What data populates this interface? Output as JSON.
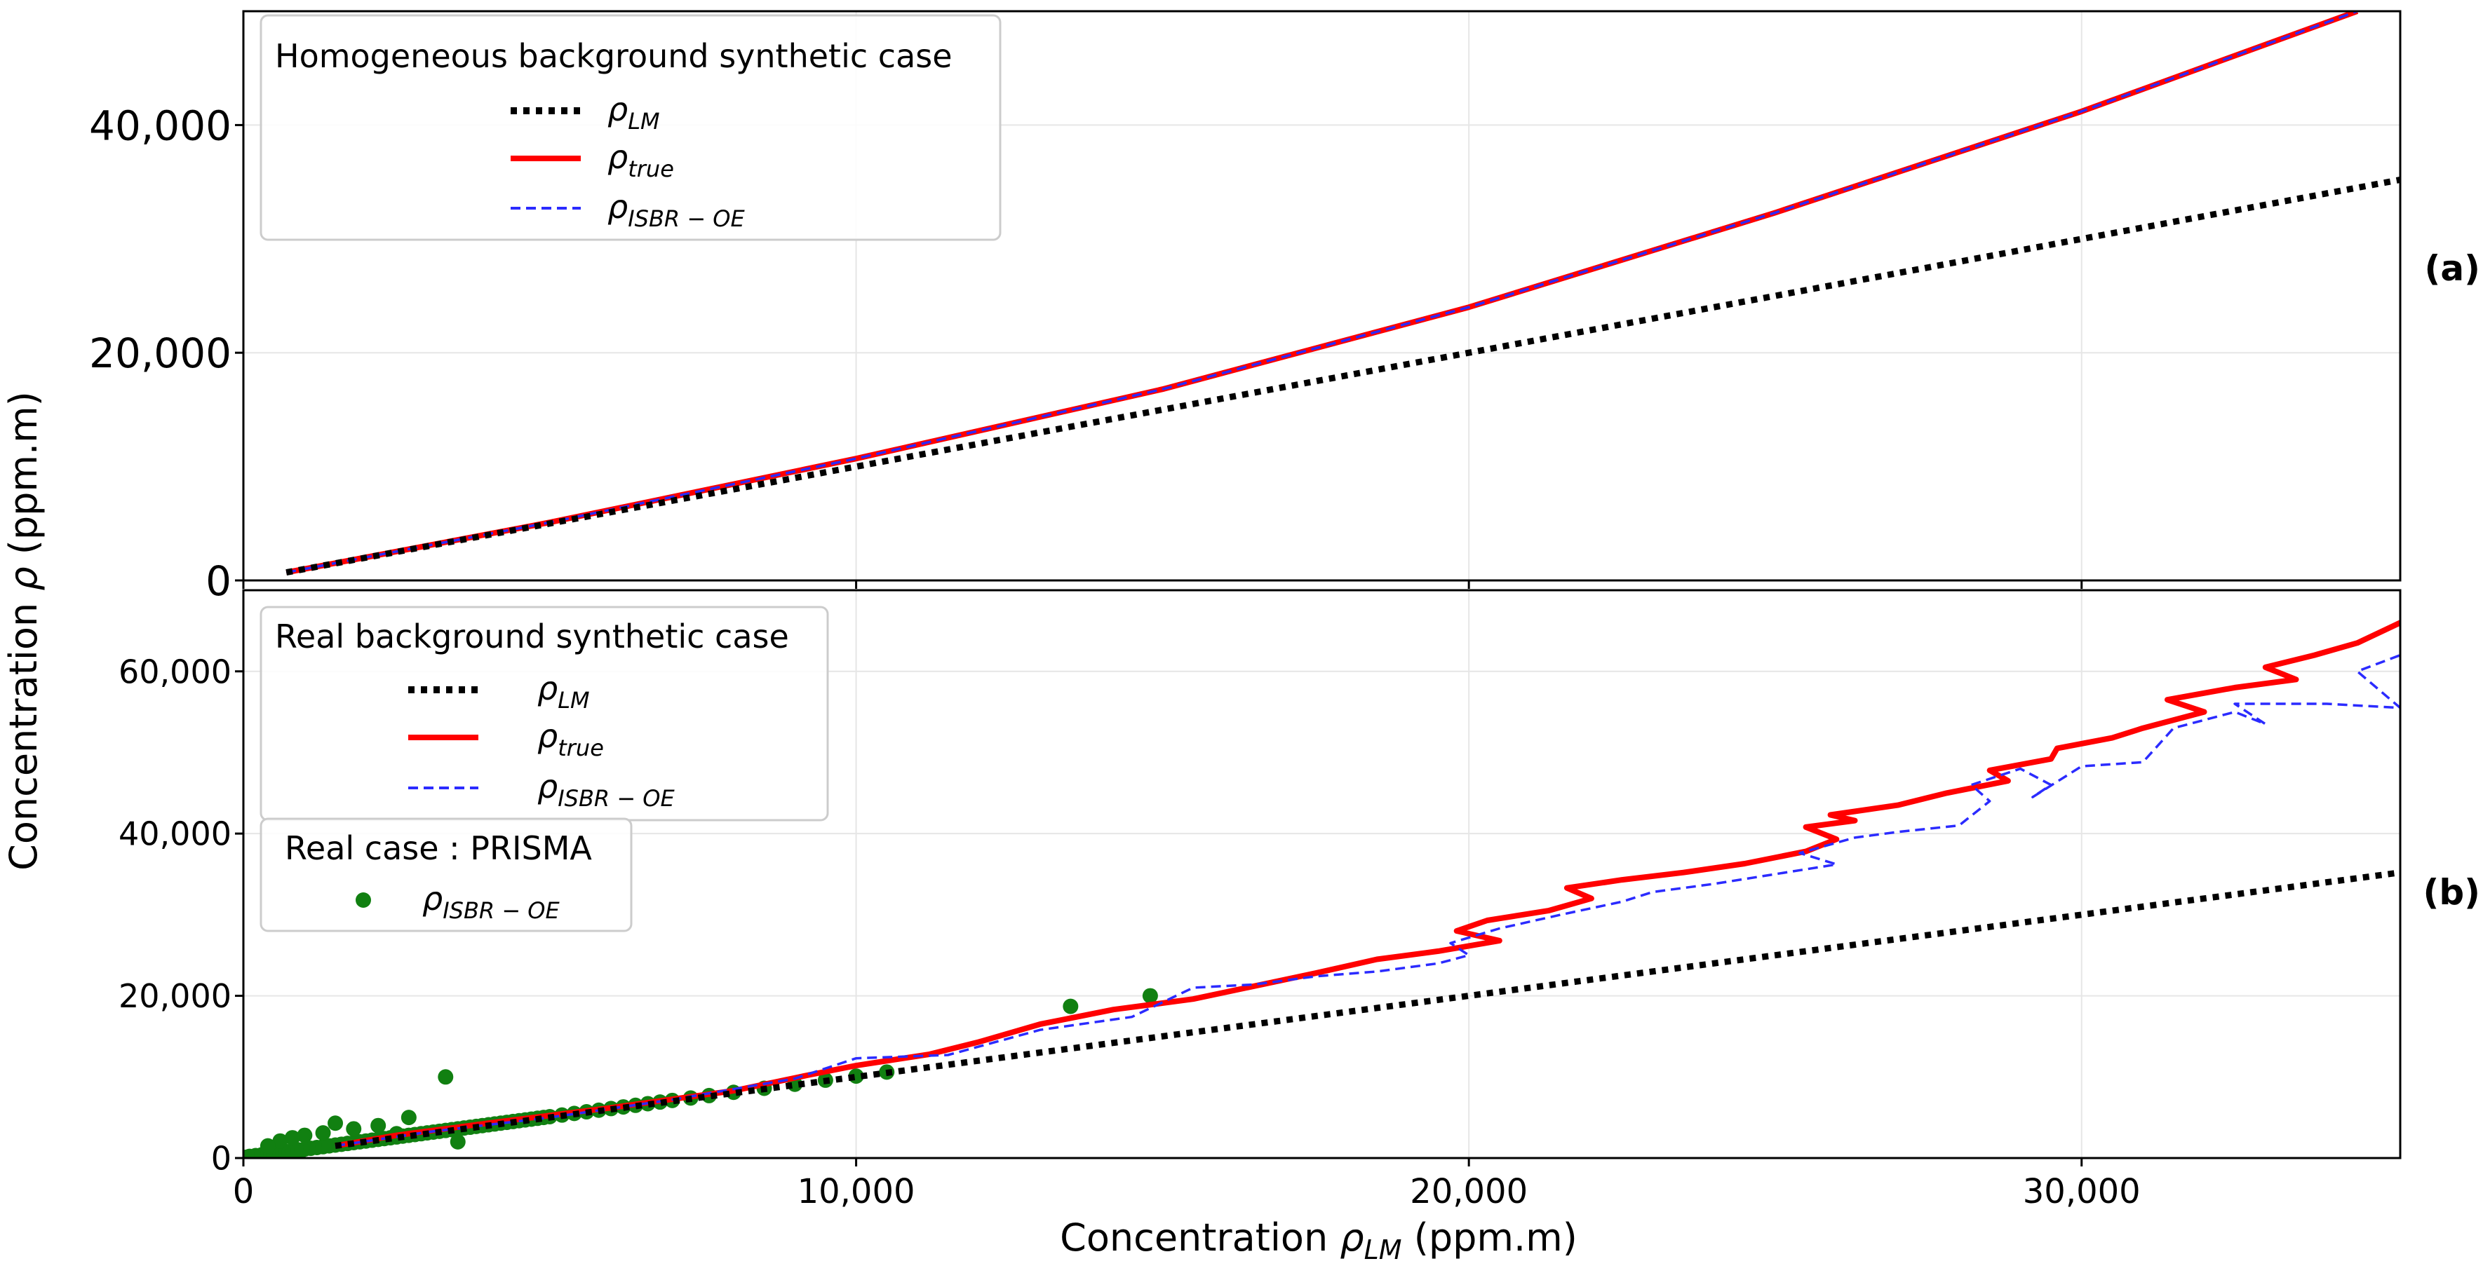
{
  "figure": {
    "y_label_main": "Concentration ",
    "y_label_sym": "ρ",
    "y_label_unit": " (ppm.m)",
    "x_label_main": "Concentration ",
    "x_label_sym": "ρ",
    "x_label_sub": "LM",
    "x_label_unit": " (ppm.m)"
  },
  "colors": {
    "lm": "#000000",
    "true": "#ff0000",
    "isbr": "#2b2bff",
    "prisma": "#118011",
    "grid": "#e6e6e6"
  },
  "chart_data": [
    {
      "id": "a",
      "type": "line",
      "panel_label": "(a)",
      "legend_title": "Homogeneous background synthetic case",
      "xlim": [
        0,
        35200
      ],
      "ylim": [
        0,
        50000
      ],
      "x_ticks": [
        0,
        10000,
        20000,
        30000
      ],
      "x_tick_labels": [
        "0",
        "10,000",
        "20,000",
        "30,000"
      ],
      "y_ticks": [
        0,
        20000,
        40000
      ],
      "y_tick_labels": [
        "0",
        "20,000",
        "40,000"
      ],
      "series": [
        {
          "key": "lm",
          "sym": "ρ",
          "sub": "LM",
          "style": "dotted",
          "x": [
            700,
            35200
          ],
          "y": [
            700,
            35200
          ]
        },
        {
          "key": "true",
          "sym": "ρ",
          "sub": "true",
          "style": "solid",
          "x": [
            700,
            5000,
            10000,
            15000,
            20000,
            25000,
            30000,
            34500
          ],
          "y": [
            700,
            5100,
            10700,
            16800,
            24000,
            32300,
            41200,
            50000
          ]
        },
        {
          "key": "isbr",
          "sym": "ρ",
          "sub": "ISBR − OE",
          "style": "dashed",
          "x": [
            700,
            5000,
            10000,
            15000,
            20000,
            25000,
            30000,
            34500
          ],
          "y": [
            700,
            5100,
            10700,
            16800,
            24000,
            32300,
            41200,
            50000
          ]
        }
      ]
    },
    {
      "id": "b",
      "type": "line",
      "panel_label": "(b)",
      "legend_title": "Real background synthetic case",
      "legend2_title": "Real case : PRISMA",
      "xlim": [
        0,
        35200
      ],
      "ylim": [
        0,
        70000
      ],
      "x_ticks": [
        0,
        10000,
        20000,
        30000
      ],
      "x_tick_labels": [
        "0",
        "10,000",
        "20,000",
        "30,000"
      ],
      "y_ticks": [
        0,
        20000,
        40000,
        60000
      ],
      "y_tick_labels": [
        "0",
        "20,000",
        "40,000",
        "60,000"
      ],
      "series": [
        {
          "key": "lm",
          "sym": "ρ",
          "sub": "LM",
          "style": "dotted",
          "x": [
            1500,
            35200
          ],
          "y": [
            1500,
            35200
          ]
        },
        {
          "key": "true",
          "sym": "ρ",
          "sub": "true",
          "style": "solid",
          "x": [
            1500,
            2500,
            4000,
            6000,
            8000,
            9200,
            10000,
            11200,
            12000,
            13000,
            14200,
            15500,
            16500,
            17500,
            18500,
            19500,
            20500,
            19800,
            20300,
            21300,
            22000,
            21600,
            22500,
            23500,
            24500,
            25500,
            26000,
            25500,
            26300,
            25900,
            27000,
            27800,
            28800,
            28500,
            29500,
            29600,
            30500,
            31000,
            32000,
            31400,
            32500,
            33500,
            33000,
            33800,
            34500,
            35200
          ],
          "y": [
            1500,
            2800,
            4300,
            6200,
            8300,
            10200,
            11400,
            12800,
            14300,
            16500,
            18300,
            19600,
            21200,
            22800,
            24500,
            25500,
            26800,
            28000,
            29300,
            30500,
            32000,
            33300,
            34300,
            35200,
            36300,
            37800,
            39300,
            40800,
            41600,
            42300,
            43500,
            45000,
            46500,
            47800,
            49200,
            50500,
            51800,
            53000,
            55000,
            56500,
            58000,
            59000,
            60500,
            62000,
            63500,
            66000
          ]
        },
        {
          "key": "isbr",
          "sym": "ρ",
          "sub": "ISBR − OE",
          "style": "dashed",
          "x": [
            1500,
            3000,
            5000,
            7000,
            9000,
            10000,
            11500,
            13000,
            14500,
            15500,
            16500,
            17500,
            18500,
            19500,
            20000,
            19700,
            20500,
            21500,
            22500,
            23000,
            24000,
            25000,
            26000,
            25400,
            26300,
            27000,
            28000,
            28500,
            28200,
            29000,
            29500,
            29200,
            30000,
            31000,
            31500,
            32500,
            33000,
            32500,
            34000,
            35200,
            34500,
            35200
          ],
          "y": [
            1500,
            3200,
            5000,
            7200,
            9800,
            12300,
            12700,
            15800,
            17400,
            21000,
            21400,
            22400,
            23000,
            24000,
            25000,
            26500,
            28300,
            30000,
            31600,
            32800,
            33800,
            35000,
            36200,
            37600,
            39500,
            40200,
            41000,
            44000,
            46000,
            48000,
            46000,
            44500,
            48300,
            48800,
            53000,
            55000,
            53500,
            56000,
            56000,
            55500,
            60000,
            62000
          ]
        },
        {
          "key": "prisma",
          "sym": "ρ",
          "sub": "ISBR − OE",
          "style": "points",
          "x": [
            50,
            100,
            150,
            200,
            250,
            300,
            350,
            400,
            450,
            500,
            550,
            600,
            650,
            700,
            750,
            800,
            850,
            900,
            950,
            1000,
            1100,
            1200,
            1300,
            1400,
            1500,
            1600,
            1700,
            1800,
            1900,
            2000,
            2100,
            2200,
            2300,
            2400,
            2500,
            2600,
            2700,
            2800,
            2900,
            3000,
            3100,
            3200,
            3300,
            3400,
            3500,
            3600,
            3700,
            3800,
            3900,
            4000,
            4100,
            4200,
            4300,
            4400,
            4500,
            4600,
            4700,
            4800,
            4900,
            5000,
            5200,
            5400,
            5600,
            5800,
            6000,
            6200,
            6400,
            6600,
            6800,
            7000,
            7300,
            7600,
            8000,
            8500,
            9000,
            9500,
            10000,
            10500,
            13500,
            14800,
            1300,
            1000,
            800,
            600,
            400,
            2200,
            3300,
            1500,
            2700,
            1800,
            2500,
            3500
          ],
          "y": [
            100,
            200,
            150,
            300,
            250,
            400,
            350,
            500,
            450,
            600,
            550,
            700,
            650,
            800,
            750,
            900,
            850,
            1000,
            950,
            1100,
            1200,
            1300,
            1400,
            1500,
            1600,
            1700,
            1800,
            1900,
            2000,
            2100,
            2200,
            2300,
            2400,
            2500,
            2600,
            2700,
            2800,
            2900,
            3000,
            3100,
            3200,
            3300,
            3400,
            3500,
            3600,
            3700,
            3800,
            3900,
            4000,
            4100,
            4200,
            4300,
            4400,
            4500,
            4600,
            4700,
            4800,
            4900,
            5000,
            5100,
            5300,
            5500,
            5700,
            5900,
            6100,
            6300,
            6500,
            6700,
            6900,
            7100,
            7400,
            7700,
            8100,
            8600,
            9100,
            9600,
            10100,
            10600,
            18700,
            20000,
            3100,
            2800,
            2500,
            2100,
            1500,
            4000,
            10000,
            4300,
            5000,
            3600,
            3000,
            2000
          ]
        }
      ]
    }
  ]
}
